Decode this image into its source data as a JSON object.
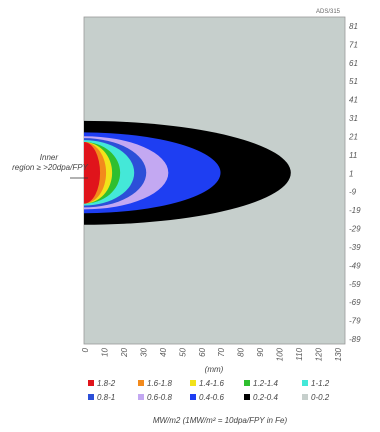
{
  "chart_data": {
    "type": "contour",
    "corner_label": "ADS/315",
    "xlabel": "(mm)",
    "x_ticks": [
      "0",
      "10",
      "20",
      "30",
      "40",
      "50",
      "60",
      "70",
      "80",
      "90",
      "100",
      "110",
      "120",
      "130"
    ],
    "y_ticks": [
      "81",
      "71",
      "61",
      "51",
      "41",
      "31",
      "21",
      "11",
      "1",
      "-9",
      "-19",
      "-29",
      "-39",
      "-49",
      "-59",
      "-69",
      "-79",
      "-89"
    ],
    "annotation": "Inner region ≥ >20dpa/FPY",
    "legend": [
      {
        "label": "1.8-2",
        "color": "#e0141b"
      },
      {
        "label": "1.6-1.8",
        "color": "#f28a1c"
      },
      {
        "label": "1.4-1.6",
        "color": "#f2e21a"
      },
      {
        "label": "1.2-1.4",
        "color": "#2fbf2f"
      },
      {
        "label": "1-1.2",
        "color": "#44e8d8"
      },
      {
        "label": "0.8-1",
        "color": "#2c4fd8"
      },
      {
        "label": "0.6-0.8",
        "color": "#c3a8f2"
      },
      {
        "label": "0.4-0.6",
        "color": "#1e3ef2"
      },
      {
        "label": "0.2-0.4",
        "color": "#000000"
      },
      {
        "label": "0-0.2",
        "color": "#c6cfcc"
      }
    ],
    "legend_title": "MW/m2 (1MW/m² = 10dpa/FPY in Fe)",
    "contours": [
      {
        "range": "0.2-0.4",
        "color": "#000000",
        "x_extent": 103,
        "y_half": 27
      },
      {
        "range": "0.4-0.6",
        "color": "#1e3ef2",
        "x_extent": 68,
        "y_half": 21
      },
      {
        "range": "0.6-0.8",
        "color": "#c3a8f2",
        "x_extent": 42,
        "y_half": 19
      },
      {
        "range": "0.8-1",
        "color": "#2c4fd8",
        "x_extent": 31,
        "y_half": 18
      },
      {
        "range": "1-1.2",
        "color": "#44e8d8",
        "x_extent": 25,
        "y_half": 17
      },
      {
        "range": "1.2-1.4",
        "color": "#2fbf2f",
        "x_extent": 18,
        "y_half": 16
      },
      {
        "range": "1.4-1.6",
        "color": "#f2e21a",
        "x_extent": 14,
        "y_half": 16
      },
      {
        "range": "1.6-1.8",
        "color": "#f28a1c",
        "x_extent": 11,
        "y_half": 16
      },
      {
        "range": "1.8-2",
        "color": "#e0141b",
        "x_extent": 8,
        "y_half": 16
      }
    ],
    "xlim": [
      0,
      130
    ],
    "ylim": [
      -89,
      81
    ],
    "background_color": "#c6cfcc"
  }
}
